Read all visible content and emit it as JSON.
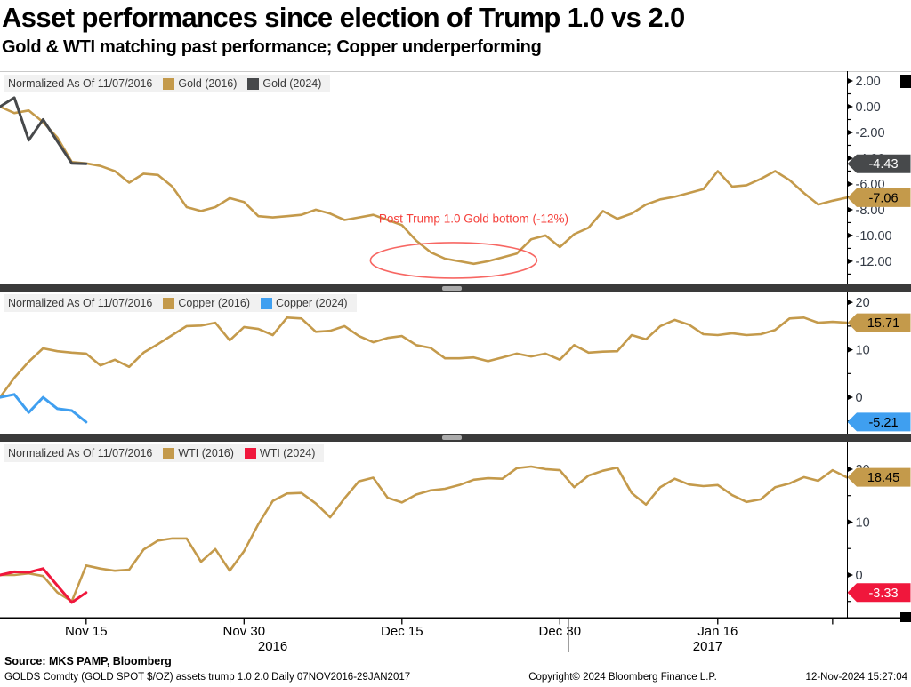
{
  "header": {
    "title": "Asset performances since election of Trump 1.0 vs 2.0",
    "subtitle": "Gold & WTI matching past performance; Copper underperforming"
  },
  "colors": {
    "gold": "#C49A4B",
    "gray": "#47494B",
    "blue": "#3F9FF0",
    "red": "#F0173C",
    "annotation": "#F5413C",
    "axis_label": "#333A45"
  },
  "x_axis": {
    "tick_labels": [
      {
        "label": "Nov 15",
        "day": 6
      },
      {
        "label": "Nov 30",
        "day": 17
      },
      {
        "label": "Dec 15",
        "day": 28
      },
      {
        "label": "Dec 30",
        "day": 39
      },
      {
        "label": "Jan 16",
        "day": 50
      }
    ],
    "extra_tick_days": [
      58
    ],
    "years": [
      {
        "label": "2016",
        "day": 19
      },
      {
        "label": "2017",
        "day": 49.3
      }
    ],
    "year_divider_day": 39.6
  },
  "chart_data": [
    {
      "name": "gold-panel",
      "type": "line",
      "legend": {
        "prefix": "Normalized As Of 11/07/2016",
        "items": [
          {
            "label": "Gold (2016)",
            "color": "#C49A4B"
          },
          {
            "label": "Gold (2024)",
            "color": "#47494B"
          }
        ]
      },
      "ylim": [
        -13.8,
        2.76
      ],
      "yticks_major": [
        {
          "label": "2.00",
          "value": 2
        },
        {
          "label": "0.00",
          "value": 0
        },
        {
          "label": "-2.00",
          "value": -2
        },
        {
          "label": "-4.00",
          "value": -4
        },
        {
          "label": "-6.00",
          "value": -6
        },
        {
          "label": "-8.00",
          "value": -8
        },
        {
          "label": "-10.00",
          "value": -10
        },
        {
          "label": "-12.00",
          "value": -12
        }
      ],
      "yticks_minor": [
        1,
        -1,
        -3,
        -5,
        -7,
        -9,
        -11,
        -13
      ],
      "series": [
        {
          "name": "Gold (2016)",
          "color": "#C49A4B",
          "width": 2.6,
          "values": [
            0.0,
            -0.5,
            -0.3,
            -1.2,
            -2.4,
            -4.3,
            -4.4,
            -4.6,
            -5.0,
            -5.9,
            -5.2,
            -5.3,
            -6.2,
            -7.8,
            -8.1,
            -7.8,
            -7.1,
            -7.4,
            -8.5,
            -8.6,
            -8.5,
            -8.4,
            -8.0,
            -8.3,
            -8.8,
            -8.6,
            -8.4,
            -8.8,
            -9.2,
            -10.4,
            -11.3,
            -11.8,
            -12.0,
            -12.2,
            -12.0,
            -11.7,
            -11.4,
            -10.3,
            -10.0,
            -10.9,
            -9.9,
            -9.4,
            -8.1,
            -8.7,
            -8.3,
            -7.6,
            -7.2,
            -7.0,
            -6.7,
            -6.4,
            -5.0,
            -6.2,
            -6.1,
            -5.6,
            -5.0,
            -5.7,
            -6.7,
            -7.6,
            -7.3,
            -7.06
          ]
        },
        {
          "name": "Gold (2024)",
          "color": "#47494B",
          "width": 3,
          "values": [
            0.0,
            0.7,
            -2.6,
            -1.0,
            -2.7,
            -4.4,
            -4.43
          ]
        }
      ],
      "badges": [
        {
          "label": "-4.43",
          "value": -4.43,
          "bg": "#47494B",
          "fg": "#FFFFFF"
        },
        {
          "label": "-7.06",
          "value": -7.06,
          "bg": "#C49A4B",
          "fg": "#000000"
        }
      ],
      "annotation": {
        "text": "Post Trump 1.0 Gold bottom (-12%)",
        "color": "#F5413C",
        "text_day": 33,
        "text_value": -9.0,
        "ellipse": {
          "day": 31.6,
          "day_rx": 5.8,
          "value": -11.93,
          "value_ry": 1.38
        }
      }
    },
    {
      "name": "copper-panel",
      "type": "line",
      "legend": {
        "prefix": "Normalized As Of 11/07/2016",
        "items": [
          {
            "label": "Copper (2016)",
            "color": "#C49A4B"
          },
          {
            "label": "Copper (2024)",
            "color": "#3F9FF0"
          }
        ]
      },
      "ylim": [
        -7.66,
        21.9
      ],
      "yticks_major": [
        {
          "label": "20",
          "value": 20
        },
        {
          "label": "10",
          "value": 10
        },
        {
          "label": "0",
          "value": 0
        }
      ],
      "yticks_minor": [
        15,
        5,
        -5
      ],
      "series": [
        {
          "name": "Copper (2016)",
          "color": "#C49A4B",
          "width": 2.6,
          "values": [
            0.0,
            4.1,
            7.5,
            10.3,
            9.7,
            9.4,
            9.2,
            6.7,
            7.9,
            6.4,
            9.4,
            11.2,
            13.1,
            15.0,
            15.1,
            15.7,
            12.0,
            14.8,
            14.4,
            13.1,
            16.8,
            16.6,
            13.8,
            14.0,
            15.0,
            12.9,
            11.6,
            12.5,
            12.9,
            11.0,
            10.4,
            8.2,
            8.2,
            8.4,
            7.6,
            8.4,
            9.2,
            8.6,
            9.2,
            7.9,
            11.0,
            9.4,
            9.6,
            9.7,
            13.1,
            12.2,
            15.0,
            16.3,
            15.3,
            13.3,
            13.1,
            13.5,
            13.1,
            13.3,
            14.2,
            16.6,
            16.8,
            15.7,
            15.9,
            15.71
          ]
        },
        {
          "name": "Copper (2024)",
          "color": "#3F9FF0",
          "width": 3,
          "values": [
            0.0,
            0.6,
            -3.2,
            0.0,
            -2.4,
            -2.8,
            -5.21
          ]
        }
      ],
      "badges": [
        {
          "label": "15.71",
          "value": 15.71,
          "bg": "#C49A4B",
          "fg": "#000000"
        },
        {
          "label": "-5.21",
          "value": -5.21,
          "bg": "#3F9FF0",
          "fg": "#000000"
        }
      ]
    },
    {
      "name": "wti-panel",
      "type": "line",
      "legend": {
        "prefix": "Normalized As Of 11/07/2016",
        "items": [
          {
            "label": "WTI (2016)",
            "color": "#C49A4B"
          },
          {
            "label": "WTI (2024)",
            "color": "#F0173C"
          }
        ]
      },
      "ylim": [
        -8.07,
        25.2
      ],
      "yticks_major": [
        {
          "label": "20",
          "value": 20
        },
        {
          "label": "10",
          "value": 10
        },
        {
          "label": "0",
          "value": 0
        }
      ],
      "yticks_minor": [
        15,
        5,
        -5
      ],
      "series": [
        {
          "name": "WTI (2016)",
          "color": "#C49A4B",
          "width": 2.6,
          "values": [
            0.0,
            0.0,
            0.3,
            -0.2,
            -3.3,
            -5.0,
            1.8,
            1.2,
            0.8,
            1.0,
            4.8,
            6.5,
            6.9,
            6.9,
            2.5,
            4.9,
            0.8,
            4.5,
            9.6,
            14.0,
            15.4,
            15.5,
            13.5,
            10.9,
            14.5,
            17.7,
            18.4,
            14.6,
            13.7,
            15.2,
            16.0,
            16.3,
            17.0,
            18.0,
            18.3,
            18.2,
            20.2,
            20.5,
            20.0,
            19.8,
            16.6,
            18.8,
            19.7,
            20.3,
            15.5,
            13.3,
            16.6,
            18.2,
            17.1,
            16.8,
            17.0,
            15.1,
            13.8,
            14.3,
            16.6,
            17.3,
            18.5,
            17.8,
            19.8,
            18.45
          ]
        },
        {
          "name": "WTI (2024)",
          "color": "#F0173C",
          "width": 3,
          "values": [
            0.0,
            0.6,
            0.5,
            1.2,
            -2.0,
            -5.2,
            -3.33
          ]
        }
      ],
      "badges": [
        {
          "label": "18.45",
          "value": 18.45,
          "bg": "#C49A4B",
          "fg": "#000000"
        },
        {
          "label": "-3.33",
          "value": -3.33,
          "bg": "#F0173C",
          "fg": "#FFFFFF"
        }
      ]
    }
  ],
  "footer": {
    "source": "Source: MKS PAMP, Bloomberg",
    "descriptor": "GOLDS Comdty (GOLD SPOT $/OZ) assets trump 1.0 2.0  Daily 07NOV2016-29JAN2017",
    "copyright": "Copyright© 2024 Bloomberg Finance L.P.",
    "timestamp": "12-Nov-2024 15:27:04"
  }
}
